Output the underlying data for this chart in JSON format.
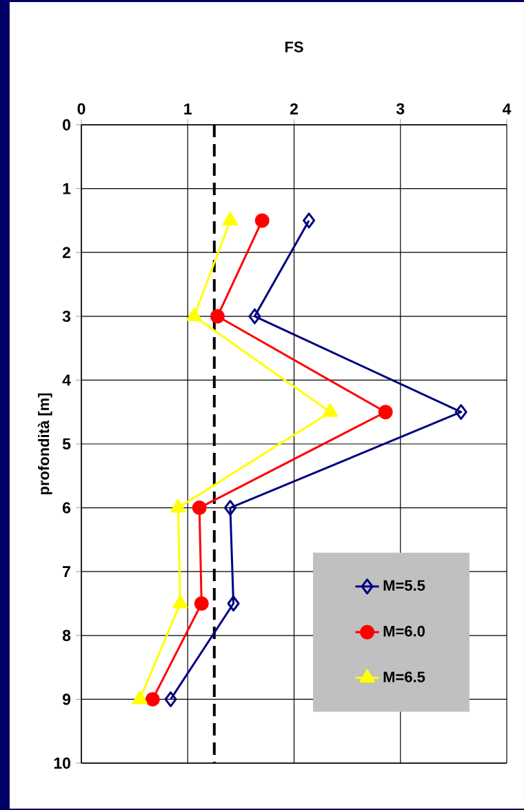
{
  "chart_data": {
    "type": "line",
    "xlabel": "FS",
    "ylabel": "profondità [m]",
    "xlim": [
      0,
      4
    ],
    "xticks": [
      0,
      1,
      2,
      3,
      4
    ],
    "ylim": [
      10,
      0
    ],
    "yticks": [
      0,
      1,
      2,
      3,
      4,
      5,
      6,
      7,
      8,
      9,
      10
    ],
    "grid": true,
    "legend": "bottom right",
    "line_style": "solid",
    "series": [
      {
        "name": "M=5.5",
        "color": "#000080",
        "marker": "diamond",
        "x": [
          2.14,
          1.63,
          3.57,
          1.4,
          1.43,
          0.84
        ],
        "values": [
          1.5,
          3,
          4.5,
          6,
          7.5,
          9
        ]
      },
      {
        "name": "M=6.0",
        "color": "#ff0000",
        "marker": "circle",
        "x": [
          1.7,
          1.28,
          2.86,
          1.11,
          1.13,
          0.67
        ],
        "values": [
          1.5,
          3,
          4.5,
          6,
          7.5,
          9
        ]
      },
      {
        "name": "M=6.5",
        "color": "#ffff00",
        "marker": "triangle",
        "x": [
          1.4,
          1.06,
          2.34,
          0.91,
          0.93,
          0.55
        ],
        "values": [
          1.5,
          3,
          4.5,
          6,
          7.5,
          9
        ]
      }
    ],
    "ref_lines": [
      {
        "axis": "x",
        "value": 1.25,
        "color": "#000000",
        "line_style": "dashed"
      }
    ]
  }
}
